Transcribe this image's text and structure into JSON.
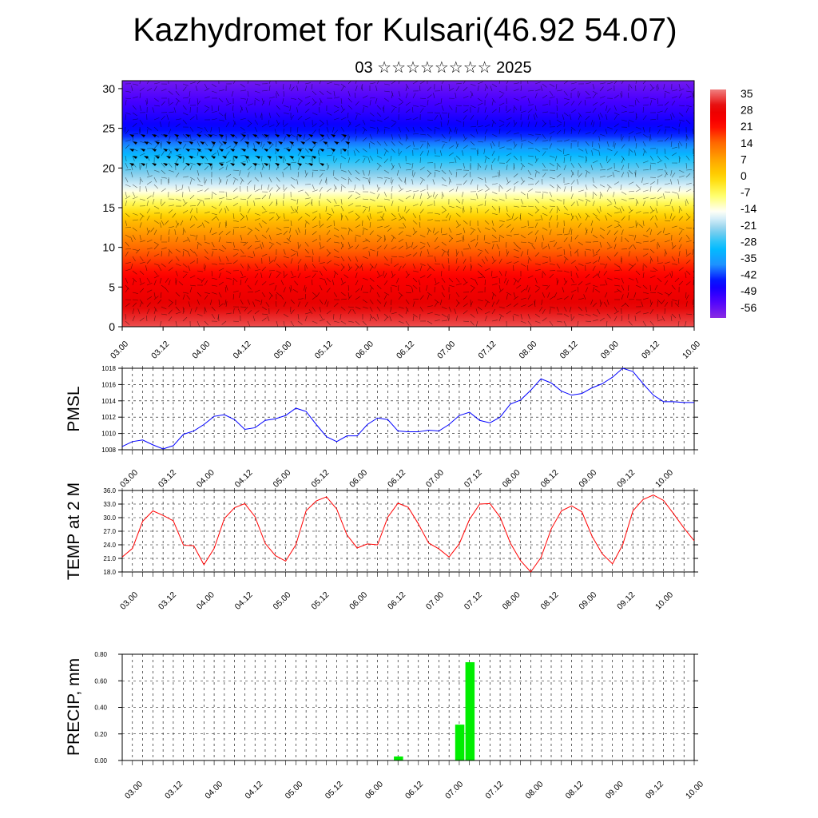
{
  "page": {
    "title": "Kazhydromet for Kulsari(46.92 54.07)",
    "subtitle": "03 ☆☆☆☆☆☆☆☆ 2025"
  },
  "chart_data": [
    {
      "type": "heatmap",
      "name": "cross-section",
      "x_ticks": [
        "03.00",
        "03.12",
        "04.00",
        "04.12",
        "05.00",
        "05.12",
        "06.00",
        "06.12",
        "07.00",
        "07.12",
        "08.00",
        "08.12",
        "09.00",
        "09.12",
        "10.00"
      ],
      "y_ticks": [
        0,
        5,
        10,
        15,
        20,
        25,
        30
      ],
      "ylim": [
        0,
        31
      ],
      "colorbar_labels": [
        35,
        28,
        21,
        14,
        7,
        0,
        -7,
        -14,
        -21,
        -28,
        -35,
        -42,
        -49,
        -56
      ],
      "temperature_profile": [
        {
          "y": 0,
          "value": 35
        },
        {
          "y": 6,
          "value": 24
        },
        {
          "y": 10,
          "value": 14
        },
        {
          "y": 13,
          "value": 5
        },
        {
          "y": 15.5,
          "value": -7
        },
        {
          "y": 18,
          "value": -20
        },
        {
          "y": 21,
          "value": -30
        },
        {
          "y": 24,
          "value": -45
        },
        {
          "y": 27,
          "value": -52
        },
        {
          "y": 31,
          "value": -60
        }
      ],
      "colormap": [
        "#8A2BE2",
        "#4B00FF",
        "#0000FF",
        "#1E90FF",
        "#00BFFF",
        "#87CEEB",
        "#FFFFFF",
        "#FFFF66",
        "#FFD700",
        "#FFA500",
        "#FF6600",
        "#FF0000",
        "#E60000",
        "#F08080"
      ]
    },
    {
      "type": "line",
      "name": "pmsl",
      "ylabel": "PMSL",
      "ylim": [
        1008,
        1018
      ],
      "y_ticks": [
        1008,
        1010,
        1012,
        1014,
        1016,
        1018
      ],
      "x_ticks": [
        "03.00",
        "03.12",
        "04.00",
        "04.12",
        "05.00",
        "05.12",
        "06.00",
        "06.12",
        "07.00",
        "07.12",
        "08.00",
        "08.12",
        "09.00",
        "09.12",
        "10.00"
      ],
      "color": "#0000FF",
      "x": [
        0,
        0.25,
        0.5,
        0.75,
        1,
        1.25,
        1.5,
        1.75,
        2,
        2.25,
        2.5,
        2.75,
        3,
        3.25,
        3.5,
        3.75,
        4,
        4.25,
        4.5,
        4.75,
        5,
        5.25,
        5.5,
        5.75,
        6,
        6.25,
        6.5,
        6.75,
        7,
        7.25,
        7.5,
        7.75,
        8,
        8.25,
        8.5,
        8.75,
        9,
        9.25,
        9.5,
        9.75,
        10,
        10.25,
        10.5,
        10.75,
        11,
        11.25,
        11.5,
        11.75,
        12,
        12.25,
        12.5,
        12.75,
        13,
        13.25,
        13.5,
        13.75,
        14
      ],
      "values": [
        1008.4,
        1009,
        1009.2,
        1008.6,
        1008.1,
        1008.5,
        1009.9,
        1010.3,
        1011.1,
        1012.1,
        1012.3,
        1011.7,
        1010.5,
        1010.7,
        1011.6,
        1011.8,
        1012.2,
        1013.1,
        1012.7,
        1011.1,
        1009.6,
        1009,
        1009.7,
        1009.7,
        1011.1,
        1011.9,
        1011.7,
        1010.3,
        1010.2,
        1010.2,
        1010.4,
        1010.3,
        1011.1,
        1012.2,
        1012.6,
        1011.6,
        1011.3,
        1012,
        1013.6,
        1014.1,
        1015.3,
        1016.7,
        1016.2,
        1015.2,
        1014.7,
        1014.9,
        1015.6,
        1016.1,
        1016.9,
        1018,
        1017.6,
        1016.1,
        1014.7,
        1013.9,
        1013.9,
        1013.8,
        1013.8
      ]
    },
    {
      "type": "line",
      "name": "temp",
      "ylabel": "TEMP at 2 M",
      "ylim": [
        18,
        36
      ],
      "y_ticks": [
        18,
        21,
        24,
        27,
        30,
        33,
        36
      ],
      "y_tick_labels": [
        "18.0",
        "21.0",
        "24.0",
        "27.0",
        "30.0",
        "33.0",
        "36.0"
      ],
      "x_ticks": [
        "03.00",
        "03.12",
        "04.00",
        "04.12",
        "05.00",
        "05.12",
        "06.00",
        "06.12",
        "07.00",
        "07.12",
        "08.00",
        "08.12",
        "09.00",
        "09.12",
        "10.00"
      ],
      "color": "#FF0000",
      "x": [
        0,
        0.25,
        0.5,
        0.75,
        1,
        1.25,
        1.5,
        1.75,
        2,
        2.25,
        2.5,
        2.75,
        3,
        3.25,
        3.5,
        3.75,
        4,
        4.25,
        4.5,
        4.75,
        5,
        5.25,
        5.5,
        5.75,
        6,
        6.25,
        6.5,
        6.75,
        7,
        7.25,
        7.5,
        7.75,
        8,
        8.25,
        8.5,
        8.75,
        9,
        9.25,
        9.5,
        9.75,
        10,
        10.25,
        10.5,
        10.75,
        11,
        11.25,
        11.5,
        11.75,
        12,
        12.25,
        12.5,
        12.75,
        13,
        13.25,
        13.5,
        13.75,
        14
      ],
      "values": [
        21.3,
        23.2,
        29.2,
        31.5,
        30.5,
        29.3,
        23.9,
        23.8,
        19.6,
        23.2,
        29.8,
        32.2,
        33.1,
        30.2,
        24.3,
        21.6,
        20.4,
        24,
        31.5,
        33.7,
        34.6,
        31.9,
        26.2,
        23.3,
        24.2,
        24,
        30.1,
        33.2,
        32.3,
        28.6,
        24.4,
        23.1,
        21.3,
        24.2,
        29.6,
        33,
        33.1,
        30.1,
        24.4,
        20.5,
        18,
        21.2,
        27.5,
        31.5,
        32.6,
        31.3,
        25.9,
        22,
        19.8,
        24,
        31.5,
        34,
        35,
        33.8,
        30.8,
        27.7,
        24.9
      ]
    },
    {
      "type": "bar",
      "name": "precip",
      "ylabel": "PRECIP, mm",
      "ylim": [
        0,
        0.8
      ],
      "y_ticks": [
        0,
        0.2,
        0.4,
        0.6,
        0.8
      ],
      "y_tick_labels": [
        "0.00",
        "0.20",
        "0.40",
        "0.60",
        "0.80"
      ],
      "x_ticks": [
        "03.00",
        "03.12",
        "04.00",
        "04.12",
        "05.00",
        "05.12",
        "06.00",
        "06.12",
        "07.00",
        "07.12",
        "08.00",
        "08.12",
        "09.00",
        "09.12",
        "10.00"
      ],
      "color": "#00EE00",
      "bars": [
        {
          "x": 6.75,
          "value": 0.03
        },
        {
          "x": 8.25,
          "value": 0.27
        },
        {
          "x": 8.5,
          "value": 0.74
        }
      ]
    }
  ]
}
